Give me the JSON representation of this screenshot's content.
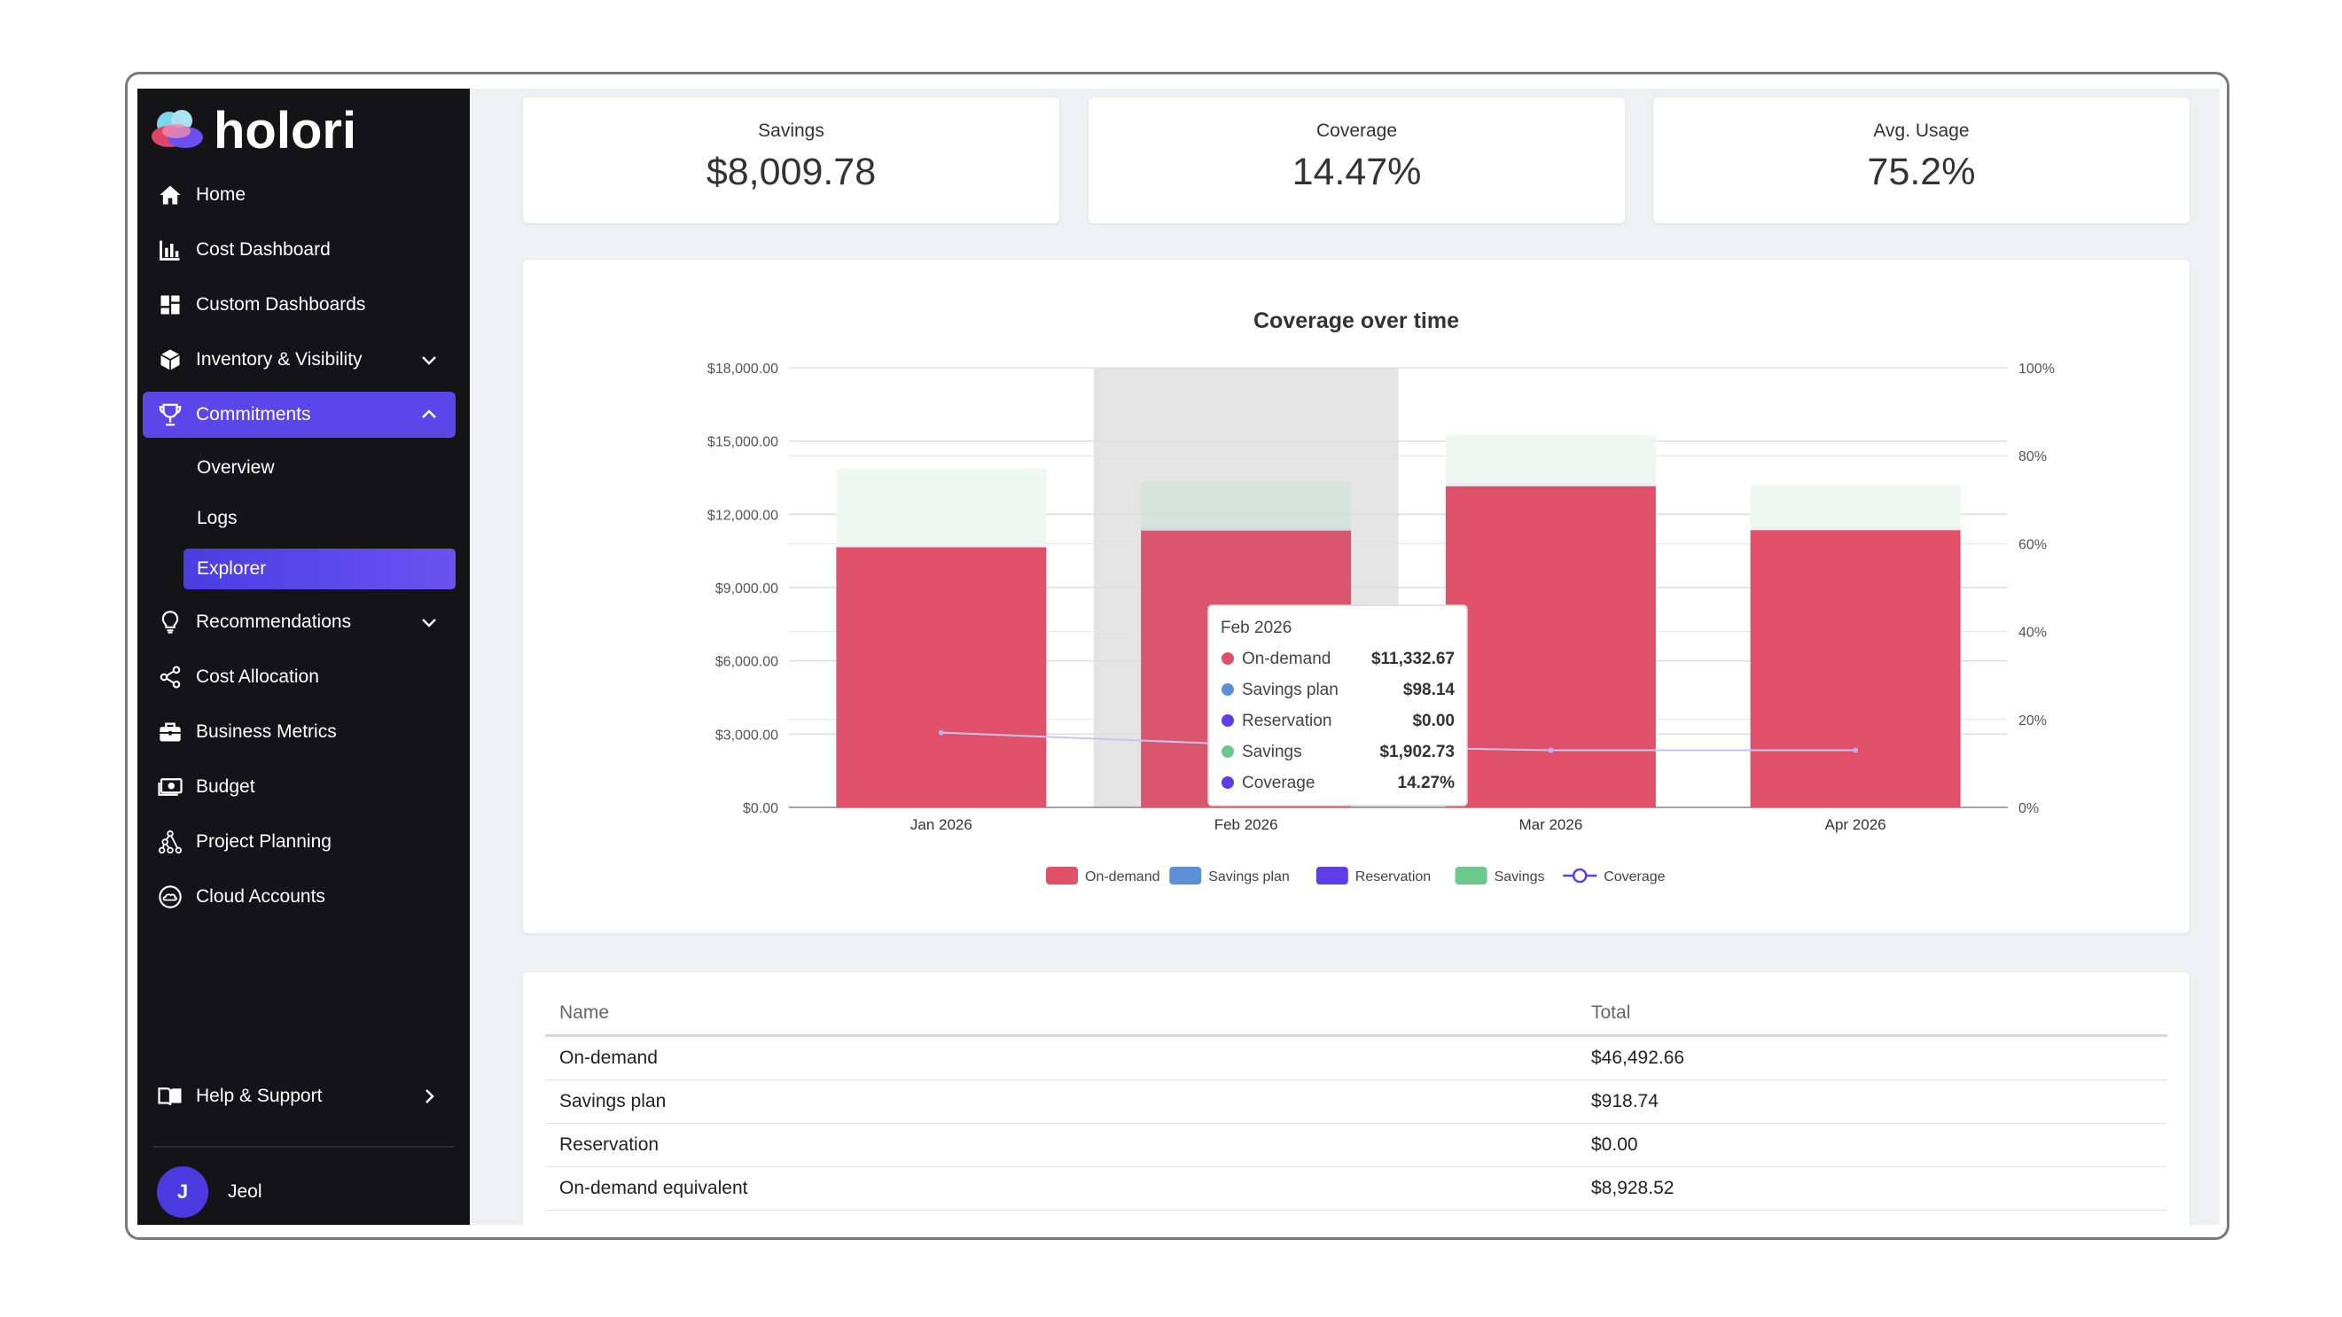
{
  "app": {
    "name": "holori"
  },
  "sidebar": {
    "items": [
      {
        "label": "Home",
        "icon": "home-icon"
      },
      {
        "label": "Cost Dashboard",
        "icon": "bar-chart-icon"
      },
      {
        "label": "Custom Dashboards",
        "icon": "dashboard-grid-icon"
      },
      {
        "label": "Inventory & Visibility",
        "icon": "cube-icon"
      },
      {
        "label": "Commitments",
        "icon": "trophy-icon"
      },
      {
        "label": "Recommendations",
        "icon": "lightbulb-icon"
      },
      {
        "label": "Cost Allocation",
        "icon": "share-icon"
      },
      {
        "label": "Business Metrics",
        "icon": "briefcase-icon"
      },
      {
        "label": "Budget",
        "icon": "money-icon"
      },
      {
        "label": "Project Planning",
        "icon": "network-icon"
      },
      {
        "label": "Cloud Accounts",
        "icon": "cloud-icon"
      }
    ],
    "sub_items": [
      "Overview",
      "Logs",
      "Explorer"
    ],
    "help_label": "Help & Support",
    "user": {
      "initial": "J",
      "name": "Jeol"
    },
    "accent_color": "#5b46ea"
  },
  "kpis": [
    {
      "label": "Savings",
      "value": "$8,009.78"
    },
    {
      "label": "Coverage",
      "value": "14.47%"
    },
    {
      "label": "Avg. Usage",
      "value": "75.2%"
    }
  ],
  "chart_data": {
    "type": "bar",
    "title": "Coverage over time",
    "categories": [
      "Jan 2026",
      "Feb 2026",
      "Mar 2026",
      "Apr 2026"
    ],
    "y_ticks": [
      "$0.00",
      "$3,000.00",
      "$6,000.00",
      "$9,000.00",
      "$12,000.00",
      "$15,000.00",
      "$18,000.00"
    ],
    "y2_ticks": [
      "0%",
      "20%",
      "40%",
      "60%",
      "80%",
      "100%"
    ],
    "ylim": [
      0,
      18000
    ],
    "y2lim": [
      0,
      100
    ],
    "stacked": true,
    "series": [
      {
        "name": "On-demand",
        "color": "#e05068",
        "values": [
          10650,
          11332.67,
          13150,
          11350
        ]
      },
      {
        "name": "Savings plan",
        "color": "#5b8fd6",
        "values": [
          100,
          98.14,
          150,
          100
        ]
      },
      {
        "name": "Reservation",
        "color": "#5b3ee6",
        "values": [
          0,
          0,
          0,
          0
        ]
      },
      {
        "name": "Savings",
        "color": "#6cc98e",
        "values": [
          3100,
          1902.73,
          1950,
          1750
        ]
      },
      {
        "name": "Coverage",
        "color": "#5b3ee6",
        "type": "line",
        "axis": "right",
        "values": [
          17,
          14.27,
          13,
          13
        ]
      }
    ],
    "legend_position": "bottom",
    "highlighted_category": "Feb 2026",
    "tooltip": {
      "title": "Feb 2026",
      "rows": [
        {
          "label": "On-demand",
          "value": "$11,332.67",
          "color": "#e05068"
        },
        {
          "label": "Savings plan",
          "value": "$98.14",
          "color": "#5b8fd6"
        },
        {
          "label": "Reservation",
          "value": "$0.00",
          "color": "#5b3ee6"
        },
        {
          "label": "Savings",
          "value": "$1,902.73",
          "color": "#6cc98e"
        },
        {
          "label": "Coverage",
          "value": "14.27%",
          "color": "#5b3ee6"
        }
      ]
    }
  },
  "table": {
    "headers": [
      "Name",
      "Total"
    ],
    "rows": [
      [
        "On-demand",
        "$46,492.66"
      ],
      [
        "Savings plan",
        "$918.74"
      ],
      [
        "Reservation",
        "$0.00"
      ],
      [
        "On-demand equivalent",
        "$8,928.52"
      ]
    ]
  }
}
